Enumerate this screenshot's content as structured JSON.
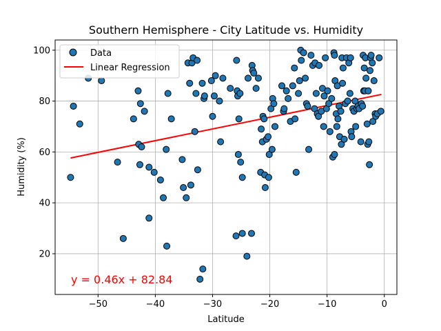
{
  "chart_data": {
    "type": "scatter",
    "title": "Southern Hemisphere - City Latitude vs. Humidity",
    "xlabel": "Latitude",
    "ylabel": "Humidity (%)",
    "xlim": [
      -57.5,
      2.2
    ],
    "ylim": [
      4,
      104
    ],
    "xticks": [
      -50,
      -40,
      -30,
      -20,
      -10,
      0
    ],
    "yticks": [
      20,
      40,
      60,
      80,
      100
    ],
    "grid": true,
    "legend": {
      "placement": "top-left",
      "entries": [
        {
          "label": "Data",
          "marker": "circle",
          "color": "#1f77b4"
        },
        {
          "label": "Linear Regression",
          "marker": "line",
          "color": "#ff0000"
        }
      ]
    },
    "regression": {
      "slope": 0.46,
      "intercept": 82.84,
      "x_range": [
        -54.8,
        -0.5
      ],
      "color": "#ff0000",
      "equation_text": "y = 0.46x + 82.84"
    },
    "series": [
      {
        "name": "Data",
        "color": "#1f77b4",
        "points": [
          [
            -54.8,
            50
          ],
          [
            -54.3,
            78
          ],
          [
            -53.2,
            71
          ],
          [
            -51.7,
            89
          ],
          [
            -49.4,
            88
          ],
          [
            -46.6,
            56
          ],
          [
            -45.6,
            26
          ],
          [
            -43.8,
            73
          ],
          [
            -43.0,
            84
          ],
          [
            -42.9,
            63
          ],
          [
            -42.7,
            55
          ],
          [
            -42.6,
            79
          ],
          [
            -42.4,
            62
          ],
          [
            -41.9,
            76
          ],
          [
            -41.1,
            54
          ],
          [
            -41.1,
            34
          ],
          [
            -40.2,
            52
          ],
          [
            -39.1,
            49
          ],
          [
            -38.6,
            42
          ],
          [
            -38.1,
            61
          ],
          [
            -38.0,
            23
          ],
          [
            -37.8,
            83
          ],
          [
            -37.2,
            73
          ],
          [
            -35.3,
            57
          ],
          [
            -35.1,
            46
          ],
          [
            -34.6,
            42
          ],
          [
            -34.3,
            95
          ],
          [
            -34.0,
            87
          ],
          [
            -33.8,
            47
          ],
          [
            -33.6,
            95
          ],
          [
            -33.4,
            97
          ],
          [
            -33.1,
            68
          ],
          [
            -32.9,
            83
          ],
          [
            -32.7,
            96
          ],
          [
            -32.6,
            53
          ],
          [
            -32.2,
            10
          ],
          [
            -31.8,
            87
          ],
          [
            -31.7,
            14
          ],
          [
            -31.5,
            81
          ],
          [
            -31.4,
            82
          ],
          [
            -30.2,
            88
          ],
          [
            -30.0,
            74
          ],
          [
            -29.7,
            82
          ],
          [
            -29.5,
            90
          ],
          [
            -28.8,
            80
          ],
          [
            -28.6,
            64
          ],
          [
            -28.2,
            89
          ],
          [
            -26.9,
            85
          ],
          [
            -25.9,
            27
          ],
          [
            -25.8,
            96
          ],
          [
            -25.7,
            84
          ],
          [
            -25.6,
            82
          ],
          [
            -25.5,
            59
          ],
          [
            -25.4,
            73
          ],
          [
            -25.2,
            83
          ],
          [
            -25.1,
            56
          ],
          [
            -24.8,
            50
          ],
          [
            -24.8,
            28
          ],
          [
            -24.0,
            19
          ],
          [
            -23.8,
            89
          ],
          [
            -23.2,
            28
          ],
          [
            -23.1,
            94
          ],
          [
            -23.0,
            92
          ],
          [
            -22.8,
            91
          ],
          [
            -22.4,
            85
          ],
          [
            -22.0,
            89
          ],
          [
            -21.6,
            52
          ],
          [
            -21.5,
            69
          ],
          [
            -21.3,
            64
          ],
          [
            -21.2,
            74
          ],
          [
            -21.0,
            73
          ],
          [
            -20.9,
            51
          ],
          [
            -20.8,
            46
          ],
          [
            -20.6,
            65
          ],
          [
            -20.3,
            66
          ],
          [
            -20.2,
            50
          ],
          [
            -20.1,
            59
          ],
          [
            -19.8,
            77
          ],
          [
            -19.6,
            61
          ],
          [
            -19.5,
            81
          ],
          [
            -19.3,
            79
          ],
          [
            -19.1,
            70
          ],
          [
            -17.9,
            86
          ],
          [
            -17.6,
            76
          ],
          [
            -17.5,
            77
          ],
          [
            -17.1,
            84
          ],
          [
            -16.8,
            81
          ],
          [
            -16.4,
            72
          ],
          [
            -16.0,
            86
          ],
          [
            -15.7,
            93
          ],
          [
            -15.6,
            73
          ],
          [
            -15.4,
            52
          ],
          [
            -15.0,
            83
          ],
          [
            -14.8,
            88
          ],
          [
            -14.6,
            100
          ],
          [
            -14.5,
            96
          ],
          [
            -14.1,
            99
          ],
          [
            -13.8,
            89
          ],
          [
            -13.6,
            79
          ],
          [
            -13.4,
            78
          ],
          [
            -13.2,
            61
          ],
          [
            -12.8,
            98
          ],
          [
            -12.5,
            94
          ],
          [
            -12.2,
            77
          ],
          [
            -12.1,
            95
          ],
          [
            -11.9,
            83
          ],
          [
            -11.7,
            75
          ],
          [
            -11.5,
            74
          ],
          [
            -11.4,
            94
          ],
          [
            -11.0,
            76
          ],
          [
            -10.8,
            85
          ],
          [
            -10.6,
            70
          ],
          [
            -10.5,
            82
          ],
          [
            -10.3,
            97
          ],
          [
            -10.1,
            77
          ],
          [
            -9.9,
            84
          ],
          [
            -9.7,
            79
          ],
          [
            -9.5,
            68
          ],
          [
            -9.2,
            81
          ],
          [
            -9.0,
            58
          ],
          [
            -8.8,
            99
          ],
          [
            -8.7,
            98
          ],
          [
            -8.7,
            59
          ],
          [
            -8.6,
            88
          ],
          [
            -8.4,
            75
          ],
          [
            -8.3,
            70
          ],
          [
            -8.2,
            86
          ],
          [
            -8.1,
            73
          ],
          [
            -7.9,
            78
          ],
          [
            -7.8,
            66
          ],
          [
            -7.6,
            76
          ],
          [
            -7.5,
            63
          ],
          [
            -7.4,
            97
          ],
          [
            -7.3,
            87
          ],
          [
            -7.2,
            93
          ],
          [
            -7.0,
            65
          ],
          [
            -6.8,
            79
          ],
          [
            -6.6,
            97
          ],
          [
            -6.4,
            80
          ],
          [
            -6.2,
            95
          ],
          [
            -6.0,
            83
          ],
          [
            -5.9,
            97
          ],
          [
            -5.8,
            68
          ],
          [
            -5.7,
            66
          ],
          [
            -5.5,
            77
          ],
          [
            -5.3,
            76
          ],
          [
            -5.1,
            80
          ],
          [
            -5.0,
            70
          ],
          [
            -4.8,
            77
          ],
          [
            -4.6,
            78
          ],
          [
            -4.4,
            77
          ],
          [
            -4.1,
            64
          ],
          [
            -4.0,
            79
          ],
          [
            -3.8,
            78
          ],
          [
            -3.7,
            98
          ],
          [
            -3.6,
            84
          ],
          [
            -3.5,
            93
          ],
          [
            -3.4,
            84
          ],
          [
            -3.3,
            97
          ],
          [
            -3.2,
            89
          ],
          [
            -3.0,
            71
          ],
          [
            -2.9,
            63
          ],
          [
            -2.8,
            84
          ],
          [
            -2.7,
            64
          ],
          [
            -2.6,
            55
          ],
          [
            -2.5,
            92
          ],
          [
            -2.4,
            97
          ],
          [
            -2.3,
            98
          ],
          [
            -2.1,
            95
          ],
          [
            -2.0,
            72
          ],
          [
            -1.8,
            88
          ],
          [
            -1.6,
            75
          ],
          [
            -1.5,
            74
          ],
          [
            -1.2,
            75
          ],
          [
            -0.9,
            97
          ],
          [
            -0.6,
            76
          ]
        ]
      }
    ]
  }
}
